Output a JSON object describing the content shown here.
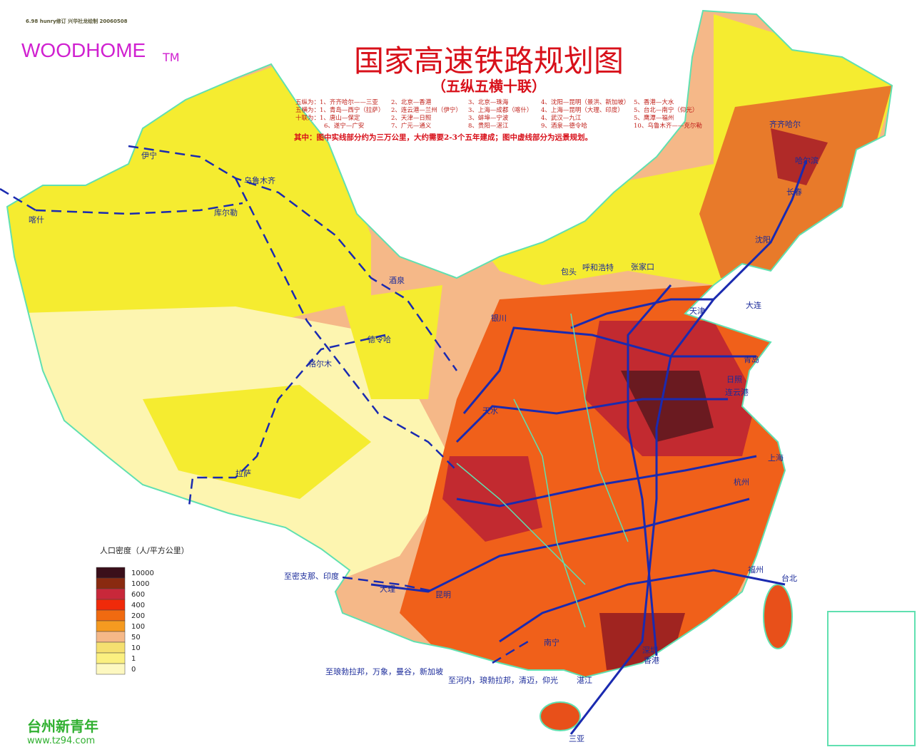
{
  "header": {
    "credit": "6.98 hunry修订  兴华社龙绘制  20060508",
    "brand": "WOODHOME",
    "brand_mark": "TM",
    "title": "国家高速铁路规划图",
    "subtitle": "（五纵五横十联）"
  },
  "routes": {
    "rows": [
      [
        "五纵为：1、齐齐哈尔——三亚",
        "2、北京—香港",
        "3、北京—珠海",
        "4、沈阳—昆明（景洪、新加坡）",
        "5、香港—大水"
      ],
      [
        "五横为：1、青岛—西宁（拉萨）",
        "2、连云港—兰州（伊宁）",
        "3、上海—成都（喀什）",
        "4、上海—昆明（大理、印度）",
        "5、台北—南宁（仰光）"
      ],
      [
        "十联为：1、唐山—保定",
        "2、天津—日照",
        "3、蚌埠—宁波",
        "4、武汉—九江",
        "5、鹰潭—福州"
      ],
      [
        "6、遂宁—广安",
        "7、广元—通义",
        "8、贵阳—湛江",
        "9、酒泉—德令哈",
        "10、乌鲁木齐——克尔勒"
      ]
    ],
    "note": "其中：图中实线部分约为三万公里，大约需要2-3个五年建成；图中虚线部分为远景规划。"
  },
  "legend": {
    "title": "人口密度（人/平方公里）",
    "items": [
      {
        "value": 10000,
        "color": "#3a0f1a"
      },
      {
        "value": 1000,
        "color": "#8a2a10"
      },
      {
        "value": 600,
        "color": "#c8283a"
      },
      {
        "value": 400,
        "color": "#f02a0a"
      },
      {
        "value": 200,
        "color": "#f06a10"
      },
      {
        "value": 100,
        "color": "#f59a20"
      },
      {
        "value": 50,
        "color": "#f5b888"
      },
      {
        "value": 10,
        "color": "#f5e070"
      },
      {
        "value": 1,
        "color": "#fbf080"
      },
      {
        "value": 0,
        "color": "#fdf8c0"
      }
    ]
  },
  "cities": [
    "伊宁",
    "乌鲁木齐",
    "喀什",
    "库尔勒",
    "酒泉",
    "德令哈",
    "格尔木",
    "拉萨",
    "银川",
    "包头",
    "呼和浩特",
    "张家口",
    "天津",
    "大连",
    "青岛",
    "日照",
    "连云港",
    "上海",
    "杭州",
    "福州",
    "台北",
    "深圳",
    "香港",
    "湛江",
    "南宁",
    "三亚",
    "大理",
    "昆明",
    "天水",
    "齐齐哈尔",
    "哈尔滨",
    "长春",
    "沈阳",
    "至密支那、印度",
    "至琅勃拉邦，万象，曼谷，新加坡",
    "至河内，琅勃拉邦，清迈，仰光"
  ],
  "watermark": {
    "name": "台州新青年",
    "url": "www.tz94.com"
  }
}
